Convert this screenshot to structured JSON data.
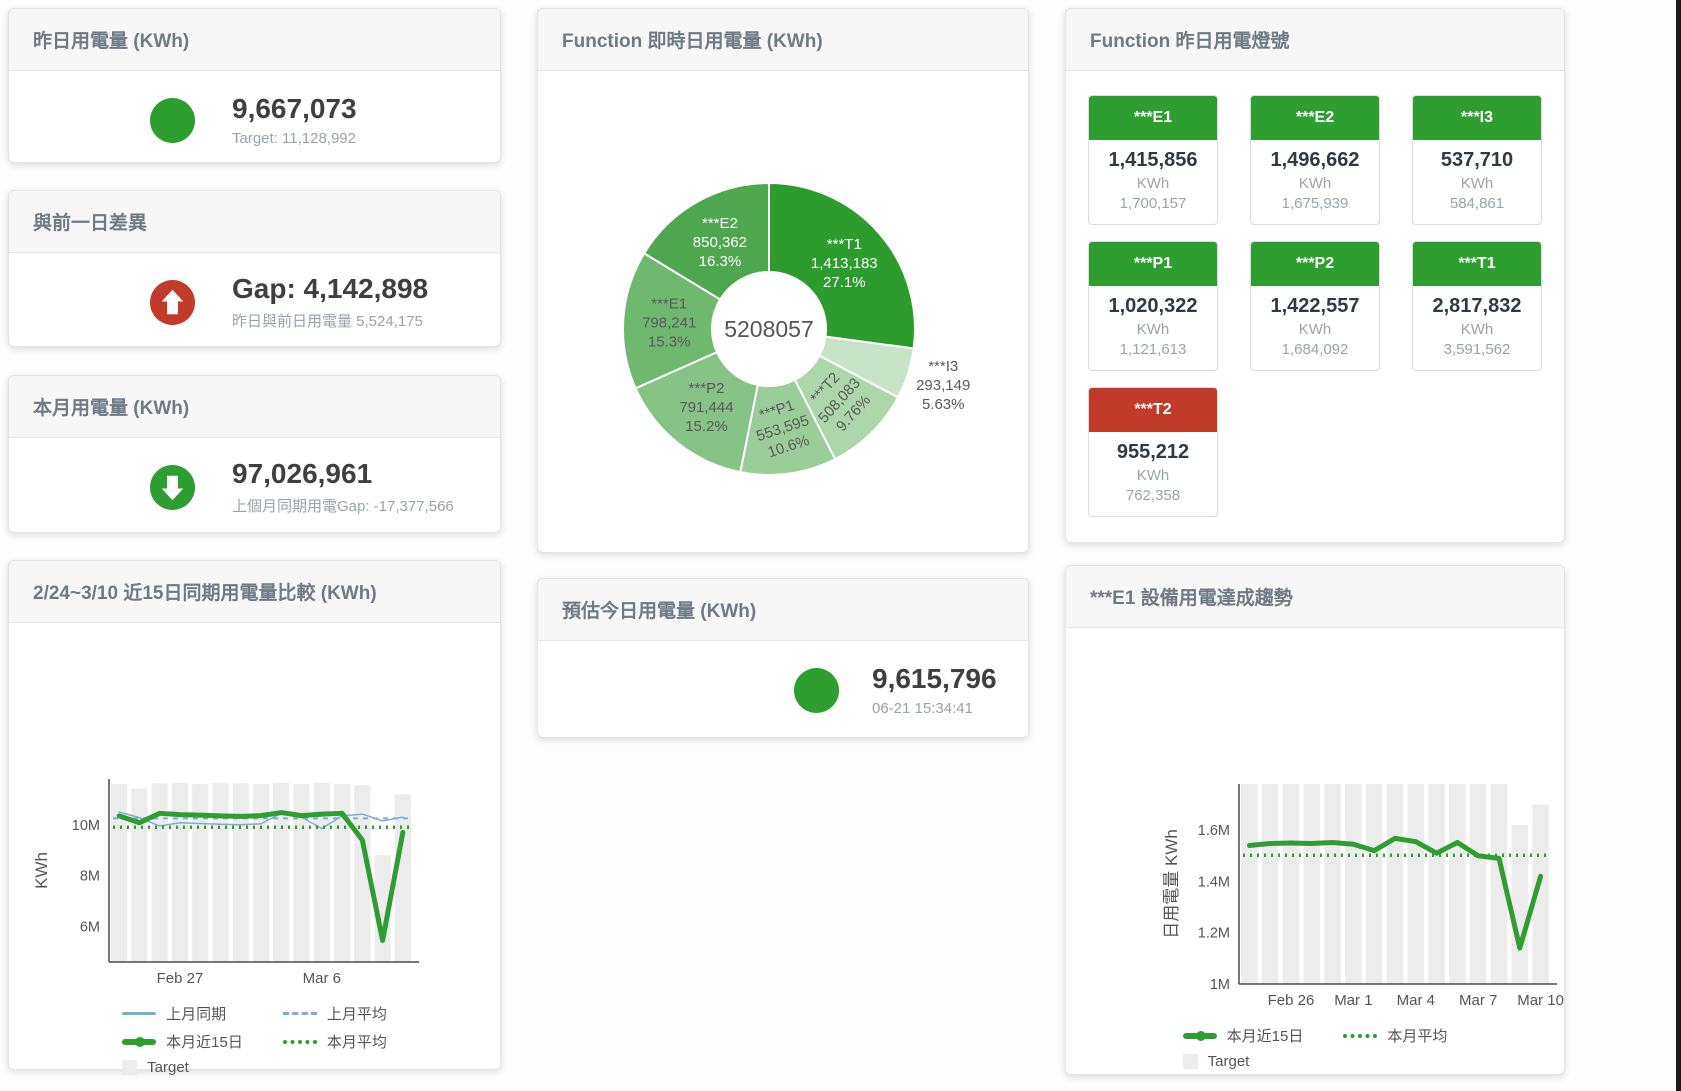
{
  "colors": {
    "green": "#2f9e31",
    "red": "#c13b2a",
    "blue_line": "#7aaed0",
    "bar_gray": "#ececec",
    "title_gray": "#6f7a85",
    "subtitle_gray": "#9aa2ab",
    "value_dark": "#3f3f3f"
  },
  "stat_cards": {
    "yesterday": {
      "title": "昨日用電量 (KWh)",
      "value": "9,667,073",
      "subtitle": "Target: 11,128,992",
      "indicator": "circle-green"
    },
    "diff_prev_day": {
      "title": "與前一日差異",
      "value": "Gap: 4,142,898",
      "subtitle": "昨日與前日用電量 5,524,175",
      "indicator": "arrow-up-red"
    },
    "month": {
      "title": "本月用電量 (KWh)",
      "value": "97,026,961",
      "subtitle": "上個月同期用電Gap: -17,377,566",
      "indicator": "arrow-down-green"
    },
    "today_estimate": {
      "title": "預估今日用電量 (KWh)",
      "value": "9,615,796",
      "subtitle": "06-21 15:34:41",
      "indicator": "circle-green"
    }
  },
  "lights": {
    "title": "Function 昨日用電燈號",
    "unit": "KWh",
    "tiles": [
      {
        "name": "***E1",
        "value": "1,415,856",
        "target": "1,700,157",
        "status": "green"
      },
      {
        "name": "***E2",
        "value": "1,496,662",
        "target": "1,675,939",
        "status": "green"
      },
      {
        "name": "***I3",
        "value": "537,710",
        "target": "584,861",
        "status": "green"
      },
      {
        "name": "***P1",
        "value": "1,020,322",
        "target": "1,121,613",
        "status": "green"
      },
      {
        "name": "***P2",
        "value": "1,422,557",
        "target": "1,684,092",
        "status": "green"
      },
      {
        "name": "***T1",
        "value": "2,817,832",
        "target": "3,591,562",
        "status": "green"
      },
      {
        "name": "***T2",
        "value": "955,212",
        "target": "762,358",
        "status": "red"
      }
    ]
  },
  "chart_data": [
    {
      "id": "donut",
      "type": "pie",
      "title": "Function 即時日用電量 (KWh)",
      "center_total": "5208057",
      "slices": [
        {
          "name": "***T1",
          "value": 1413183,
          "value_label": "1,413,183",
          "pct": "27.1%",
          "color": "#2e9b2f",
          "text": "#ffffff"
        },
        {
          "name": "***I3",
          "value": 293149,
          "value_label": "293,149",
          "pct": "5.63%",
          "color": "#c8e4c8",
          "text": "#5a5a5a",
          "outside": true
        },
        {
          "name": "***T2",
          "value": 508083,
          "value_label": "508,083",
          "pct": "9.76%",
          "color": "#abd7ab",
          "text": "#5a5a5a",
          "rotate": -48
        },
        {
          "name": "***P1",
          "value": 553595,
          "value_label": "553,595",
          "pct": "10.6%",
          "color": "#99ce99",
          "text": "#5a5a5a",
          "rotate": -18
        },
        {
          "name": "***P2",
          "value": 791444,
          "value_label": "791,444",
          "pct": "15.2%",
          "color": "#85c485",
          "text": "#5a5a5a"
        },
        {
          "name": "***E1",
          "value": 798241,
          "value_label": "798,241",
          "pct": "15.3%",
          "color": "#6fb96f",
          "text": "#5a5a5a"
        },
        {
          "name": "***E2",
          "value": 850362,
          "value_label": "850,362",
          "pct": "16.3%",
          "color": "#4ea64e",
          "text": "#ffffff"
        }
      ]
    },
    {
      "id": "trend-left",
      "type": "line+bar",
      "title": "2/24~3/10 近15日同期用電量比較 (KWh)",
      "ylabel": "KWh",
      "ylim": [
        4600000,
        11800000
      ],
      "yticks": [
        {
          "v": 6000000,
          "label": "6M"
        },
        {
          "v": 8000000,
          "label": "8M"
        },
        {
          "v": 10000000,
          "label": "10M"
        }
      ],
      "x_count": 15,
      "xticks": [
        {
          "i": 3,
          "label": "Feb 27"
        },
        {
          "i": 10,
          "label": "Mar 6"
        }
      ],
      "bars": {
        "name": "Target",
        "color": "#ececec",
        "values": [
          11600000,
          11430000,
          11620000,
          11650000,
          11600000,
          11640000,
          11630000,
          11600000,
          11650000,
          11600000,
          11650000,
          11600000,
          11560000,
          8800000,
          11200000
        ]
      },
      "series": [
        {
          "name": "上月同期",
          "color": "#7aaed0",
          "width": 1.5,
          "values": [
            10500000,
            10280000,
            9950000,
            10080000,
            10050000,
            10020000,
            10000000,
            10040000,
            10450000,
            10300000,
            9850000,
            10350000,
            10420000,
            10150000,
            10300000
          ]
        },
        {
          "name": "上月平均",
          "color": "#7aaed0",
          "width": 2,
          "dash": "5 5",
          "avg": 10250000
        },
        {
          "name": "本月近15日",
          "color": "#2f9e31",
          "width": 5,
          "values": [
            10350000,
            10080000,
            10450000,
            10400000,
            10380000,
            10350000,
            10330000,
            10360000,
            10480000,
            10360000,
            10420000,
            10450000,
            9400000,
            5450000,
            9700000
          ]
        },
        {
          "name": "本月平均",
          "color": "#2f9e31",
          "width": 3.5,
          "dash": "2 5",
          "avg": 9900000
        }
      ],
      "legend": [
        {
          "label": "上月同期",
          "swatch": "line",
          "color": "#7aaed0"
        },
        {
          "label": "上月平均",
          "swatch": "dash",
          "color": "#7aaed0"
        },
        {
          "label": "本月近15日",
          "swatch": "thick",
          "color": "#2f9e31"
        },
        {
          "label": "本月平均",
          "swatch": "dots",
          "color": "#2f9e31"
        },
        {
          "label": "Target",
          "swatch": "square",
          "color": "#ececec"
        }
      ]
    },
    {
      "id": "trend-right",
      "type": "line+bar",
      "title": "***E1 設備用電達成趨勢",
      "ylabel": "日用電量 KWh",
      "ylim": [
        1000000,
        1780000
      ],
      "yticks": [
        {
          "v": 1000000,
          "label": "1M"
        },
        {
          "v": 1200000,
          "label": "1.2M"
        },
        {
          "v": 1400000,
          "label": "1.4M"
        },
        {
          "v": 1600000,
          "label": "1.6M"
        }
      ],
      "x_count": 15,
      "xticks": [
        {
          "i": 2,
          "label": "Feb 26"
        },
        {
          "i": 5,
          "label": "Mar 1"
        },
        {
          "i": 8,
          "label": "Mar 4"
        },
        {
          "i": 11,
          "label": "Mar 7"
        },
        {
          "i": 14,
          "label": "Mar 10"
        }
      ],
      "bars": {
        "name": "Target",
        "color": "#ececec",
        "values": [
          1780000,
          1780000,
          1780000,
          1780000,
          1780000,
          1780000,
          1780000,
          1780000,
          1780000,
          1780000,
          1780000,
          1780000,
          1780000,
          1620000,
          1700000
        ]
      },
      "series": [
        {
          "name": "本月近15日",
          "color": "#2f9e31",
          "width": 5,
          "values": [
            1540000,
            1548000,
            1550000,
            1548000,
            1552000,
            1545000,
            1520000,
            1568000,
            1555000,
            1510000,
            1552000,
            1500000,
            1490000,
            1140000,
            1420000
          ]
        },
        {
          "name": "本月平均",
          "color": "#2f9e31",
          "width": 3.5,
          "dash": "2 5",
          "avg": 1502000
        }
      ],
      "legend": [
        {
          "label": "本月近15日",
          "swatch": "thick",
          "color": "#2f9e31"
        },
        {
          "label": "本月平均",
          "swatch": "dots",
          "color": "#2f9e31"
        },
        {
          "label": "Target",
          "swatch": "square",
          "color": "#ececec"
        }
      ]
    }
  ]
}
